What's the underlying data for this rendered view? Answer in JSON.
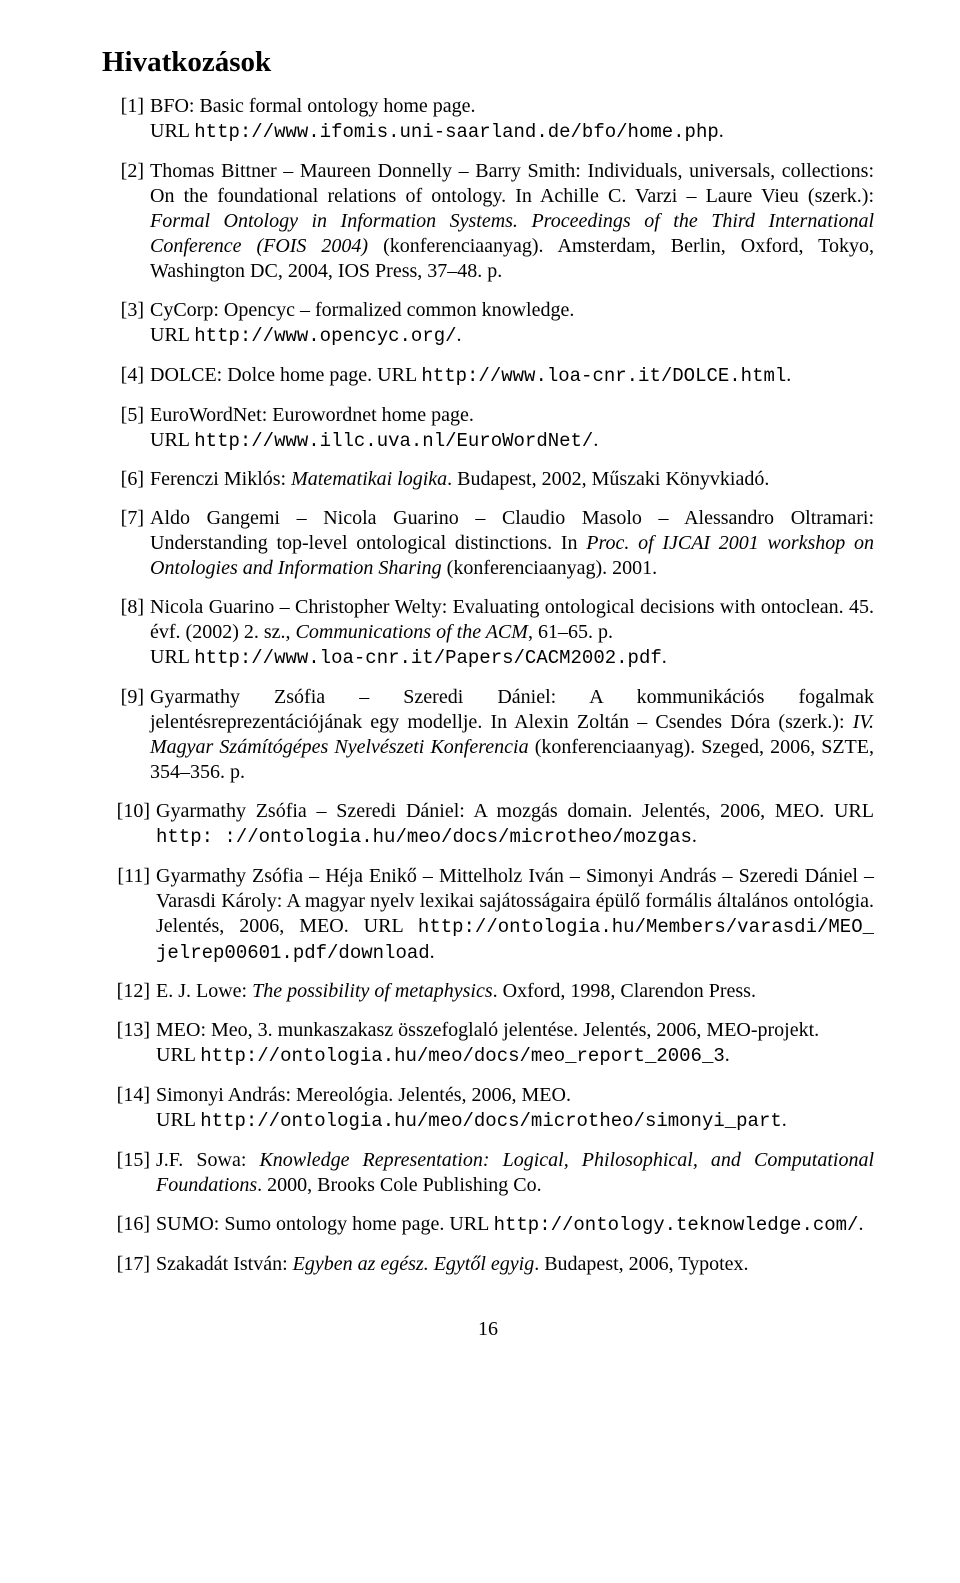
{
  "title": "Hivatkozások",
  "page_number": "16",
  "refs": [
    {
      "label": "[1]",
      "html": "BFO: Basic formal ontology home page.<br>URL <span class='tt'>http://www.ifomis.uni-saarland.de/bfo/home.php</span>."
    },
    {
      "label": "[2]",
      "html": "Thomas Bittner – Maureen Donnelly – Barry Smith: Individuals, universals, collections: On the foundational relations of ontology. In Achille C. Varzi – Laure Vieu (szerk.): <span class='it'>Formal Ontology in Information Systems. Proceedings of the Third International Conference (FOIS 2004)</span> (konferenciaanyag). Amsterdam, Berlin, Oxford, Tokyo, Washington DC, 2004, IOS Press, 37–48. p."
    },
    {
      "label": "[3]",
      "html": "CyCorp: Opencyc – formalized common knowledge.<br>URL <span class='tt'>http://www.opencyc.org/</span>."
    },
    {
      "label": "[4]",
      "html": "DOLCE: Dolce home page. URL <span class='tt'>http://www.loa-cnr.it/DOLCE.html</span>."
    },
    {
      "label": "[5]",
      "html": "EuroWordNet: Eurowordnet home page.<br>URL <span class='tt'>http://www.illc.uva.nl/EuroWordNet/</span>."
    },
    {
      "label": "[6]",
      "html": "Ferenczi Miklós: <span class='it'>Matematikai logika</span>. Budapest, 2002, Műszaki Könyvkiadó."
    },
    {
      "label": "[7]",
      "html": "Aldo Gangemi – Nicola Guarino – Claudio Masolo – Alessandro Oltramari: Understanding top-level ontological distinctions. In <span class='it'>Proc. of IJCAI 2001 workshop on Ontologies and Information Sharing</span> (konferenciaanyag). 2001."
    },
    {
      "label": "[8]",
      "html": "Nicola Guarino – Christopher Welty: Evaluating ontological decisions with ontoclean. 45. évf. (2002) 2. sz., <span class='it'>Communications of the ACM</span>, 61–65. p.<br>URL <span class='tt'>http://www.loa-cnr.it/Papers/CACM2002.pdf</span>."
    },
    {
      "label": "[9]",
      "html": "Gyarmathy Zsófia – Szeredi Dániel: A kommunikációs fogalmak jelentésreprezentációjának egy modellje. In Alexin Zoltán – Csendes Dóra (szerk.): <span class='it'>IV. Magyar Számítógépes Nyelvészeti Konferencia</span> (konferenciaanyag). Szeged, 2006, SZTE, 354–356. p."
    },
    {
      "label": "[10]",
      "html": "Gyarmathy Zsófia – Szeredi Dániel: A mozgás domain. Jelentés, 2006, MEO. URL <span class='tt'>http: ://ontologia.hu/meo/docs/microtheo/mozgas</span>."
    },
    {
      "label": "[11]",
      "html": "Gyarmathy Zsófia – Héja Enikő – Mittelholz Iván – Simonyi András – Szeredi Dániel – Varasdi Károly: A magyar nyelv lexikai sajátosságaira épülő formális általános ontológia. Jelentés, 2006, MEO. URL <span class='tt'>http://ontologia.hu/Members/varasdi/MEO_ jelrep00601.pdf/download</span>."
    },
    {
      "label": "[12]",
      "html": "E. J. Lowe: <span class='it'>The possibility of metaphysics</span>. Oxford, 1998, Clarendon Press."
    },
    {
      "label": "[13]",
      "html": "MEO: Meo, 3. munkaszakasz összefoglaló jelentése. Jelentés, 2006, MEO-projekt.<br>URL <span class='tt'>http://ontologia.hu/meo/docs/meo_report_2006_3</span>."
    },
    {
      "label": "[14]",
      "html": "Simonyi András: Mereológia. Jelentés, 2006, MEO.<br>URL <span class='tt'>http://ontologia.hu/meo/docs/microtheo/simonyi_part</span>."
    },
    {
      "label": "[15]",
      "html": "J.F. Sowa: <span class='it'>Knowledge Representation: Logical, Philosophical, and Computational Foundations</span>. 2000, Brooks Cole Publishing Co."
    },
    {
      "label": "[16]",
      "html": "SUMO: Sumo ontology home page. URL <span class='tt'>http://ontology.teknowledge.com/</span>."
    },
    {
      "label": "[17]",
      "html": "Szakadát István: <span class='it'>Egyben az egész. Egytől egyig</span>. Budapest, 2006, Typotex."
    }
  ]
}
